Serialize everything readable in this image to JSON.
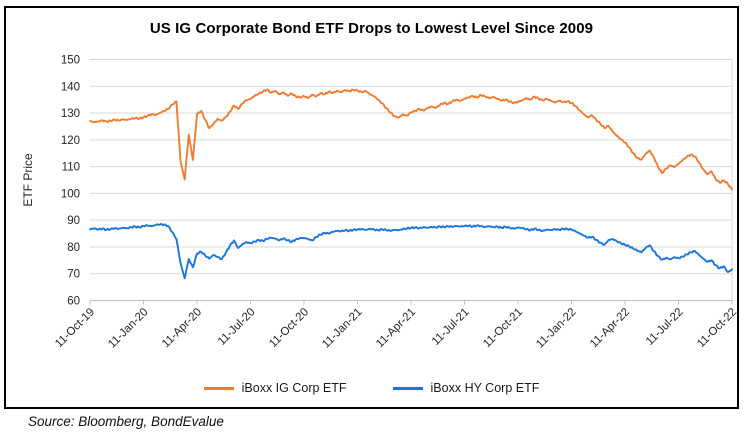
{
  "window": {
    "source_note": "Source: Bloomberg, BondEvalue"
  },
  "chart_data": {
    "type": "line",
    "title": "US IG Corporate Bond ETF Drops to Lowest Level Since 2009",
    "xlabel": "",
    "ylabel": "ETF Price",
    "ylim": [
      60,
      150
    ],
    "yticks": [
      60,
      70,
      80,
      90,
      100,
      110,
      120,
      130,
      140,
      150
    ],
    "grid": "horizontal",
    "grid_color": "#d9d9d9",
    "axis_color": "#bfbfbf",
    "tick_text_color": "#262626",
    "legend_position": "bottom",
    "weeks_total": 156,
    "x_tick_week_indices": [
      0,
      13,
      26,
      39,
      52,
      65,
      78,
      91,
      104,
      117,
      130,
      143,
      156
    ],
    "x_tick_labels": [
      "11-Oct-19",
      "11-Jan-20",
      "11-Apr-20",
      "11-Jul-20",
      "11-Oct-20",
      "11-Jan-21",
      "11-Apr-21",
      "11-Jul-21",
      "11-Oct-21",
      "11-Jan-22",
      "11-Apr-22",
      "11-Jul-22",
      "11-Oct-22"
    ],
    "render_jitter": 0.28,
    "series": [
      {
        "name": "iBoxx IG Corp ETF",
        "color": "#ED7D31",
        "values": [
          127.0,
          126.6,
          126.9,
          127.3,
          126.8,
          127.1,
          127.5,
          127.2,
          127.6,
          127.4,
          127.8,
          128.1,
          127.9,
          128.4,
          129.0,
          129.6,
          129.3,
          130.1,
          130.8,
          131.6,
          133.2,
          134.3,
          112.0,
          105.2,
          122.0,
          112.5,
          129.5,
          130.8,
          127.5,
          124.3,
          126.0,
          127.8,
          127.2,
          128.5,
          130.5,
          132.8,
          131.5,
          133.5,
          134.8,
          135.2,
          136.4,
          137.2,
          138.0,
          138.8,
          137.6,
          138.3,
          137.0,
          137.8,
          136.5,
          137.3,
          136.2,
          135.8,
          136.3,
          135.6,
          136.8,
          136.2,
          137.4,
          137.0,
          138.0,
          137.5,
          138.3,
          137.8,
          138.6,
          138.2,
          138.7,
          138.4,
          137.8,
          138.2,
          137.0,
          136.3,
          135.0,
          133.6,
          131.8,
          130.2,
          128.8,
          128.3,
          129.5,
          129.0,
          130.3,
          130.8,
          131.5,
          130.9,
          131.8,
          132.4,
          131.9,
          133.0,
          133.8,
          133.3,
          134.4,
          135.0,
          134.6,
          135.4,
          135.9,
          136.4,
          135.8,
          136.7,
          136.2,
          135.5,
          136.0,
          135.2,
          134.6,
          135.0,
          134.3,
          133.8,
          134.2,
          134.8,
          135.6,
          135.0,
          136.2,
          135.4,
          134.7,
          135.3,
          134.5,
          133.9,
          134.6,
          134.0,
          134.4,
          133.8,
          132.6,
          131.0,
          129.6,
          128.4,
          129.2,
          127.5,
          126.0,
          124.4,
          125.2,
          123.0,
          121.5,
          120.2,
          119.0,
          117.2,
          115.0,
          113.2,
          112.6,
          114.8,
          116.0,
          113.5,
          110.0,
          107.6,
          109.2,
          110.5,
          109.8,
          111.0,
          112.4,
          113.6,
          114.5,
          113.8,
          111.5,
          109.0,
          107.2,
          108.3,
          105.5,
          104.0,
          104.8,
          103.5,
          101.5
        ]
      },
      {
        "name": "iBoxx HY Corp ETF",
        "color": "#1B75DC",
        "values": [
          86.6,
          86.9,
          86.5,
          86.8,
          86.4,
          86.7,
          87.0,
          86.8,
          87.2,
          87.0,
          87.4,
          87.6,
          87.3,
          87.8,
          88.0,
          87.7,
          88.2,
          88.4,
          88.3,
          87.8,
          85.5,
          83.0,
          74.0,
          68.3,
          75.5,
          72.4,
          77.5,
          78.2,
          76.8,
          75.6,
          77.0,
          76.2,
          75.4,
          77.8,
          80.5,
          82.4,
          79.6,
          81.0,
          81.8,
          81.4,
          82.0,
          82.6,
          82.2,
          83.0,
          83.4,
          83.1,
          82.4,
          83.2,
          82.5,
          81.9,
          82.8,
          83.3,
          83.4,
          83.0,
          82.4,
          83.8,
          84.6,
          85.2,
          85.0,
          85.6,
          86.0,
          85.8,
          86.2,
          86.0,
          86.4,
          86.5,
          86.7,
          86.4,
          86.8,
          86.5,
          86.2,
          86.6,
          86.3,
          86.0,
          86.4,
          86.2,
          86.6,
          86.9,
          87.1,
          87.3,
          87.0,
          87.4,
          87.2,
          87.5,
          87.3,
          87.6,
          87.4,
          87.7,
          87.5,
          87.8,
          87.6,
          87.8,
          87.9,
          87.6,
          88.0,
          87.8,
          87.5,
          87.8,
          87.4,
          87.6,
          87.2,
          87.5,
          87.1,
          86.8,
          87.2,
          87.0,
          86.6,
          86.2,
          86.8,
          86.4,
          86.0,
          86.5,
          86.3,
          86.7,
          86.4,
          86.8,
          86.6,
          86.5,
          85.8,
          85.0,
          84.2,
          83.4,
          83.8,
          82.6,
          81.6,
          80.8,
          82.6,
          83.0,
          82.2,
          81.4,
          80.8,
          80.2,
          79.4,
          78.6,
          78.0,
          79.6,
          80.6,
          78.4,
          76.6,
          75.2,
          76.0,
          75.4,
          76.2,
          75.8,
          76.4,
          77.2,
          78.0,
          78.4,
          77.0,
          75.6,
          74.4,
          75.0,
          73.2,
          72.0,
          72.8,
          70.6,
          71.6
        ]
      }
    ]
  }
}
